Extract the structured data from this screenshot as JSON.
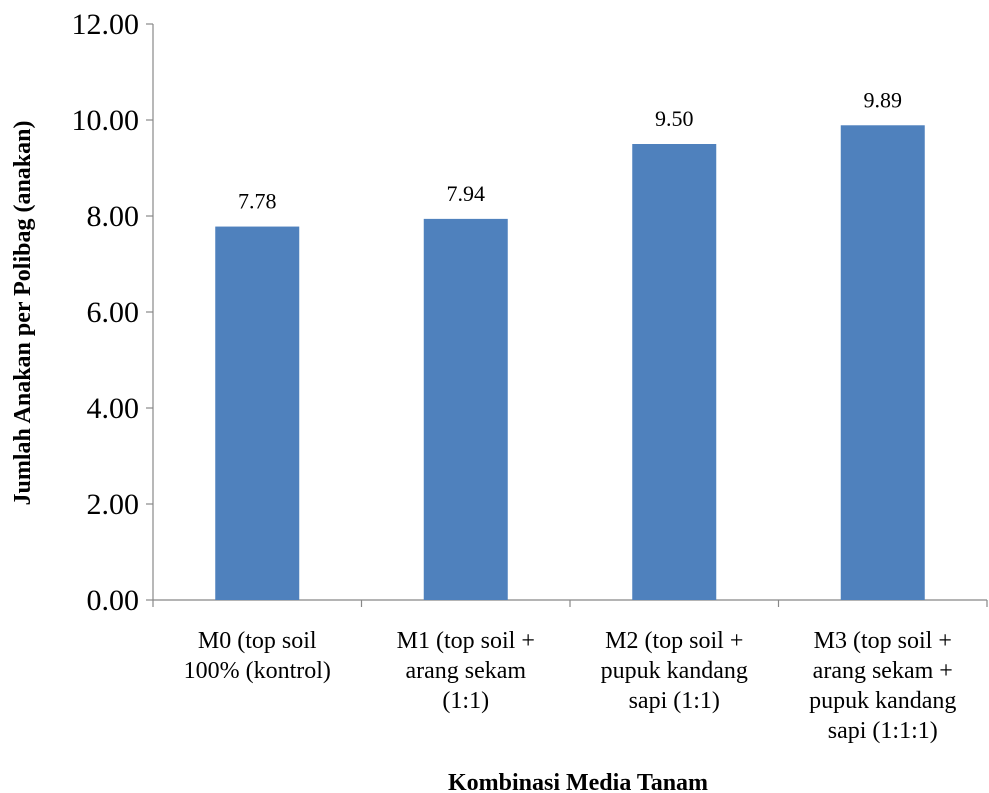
{
  "chart_data": {
    "type": "bar",
    "categories": [
      [
        "M0 (top soil",
        "100% (kontrol)"
      ],
      [
        "M1 (top soil +",
        "arang sekam",
        "(1:1)"
      ],
      [
        "M2 (top soil +",
        "pupuk kandang",
        "sapi (1:1)"
      ],
      [
        "M3 (top soil +",
        "arang sekam +",
        "pupuk kandang",
        "sapi (1:1:1)"
      ]
    ],
    "values": [
      7.78,
      7.94,
      9.5,
      9.89
    ],
    "value_labels": [
      "7.78",
      "7.94",
      "9.50",
      "9.89"
    ],
    "y_ticks": [
      "0.00",
      "2.00",
      "4.00",
      "6.00",
      "8.00",
      "10.00",
      "12.00"
    ],
    "ylim": [
      0,
      12
    ],
    "xlabel": "Kombinasi Media Tanam",
    "ylabel": "Jumlah Anakan per Polibag (anakan)",
    "title": "",
    "grid": false,
    "legend": "none",
    "bar_color": "#4f81bd",
    "axis_color": "#888888"
  }
}
